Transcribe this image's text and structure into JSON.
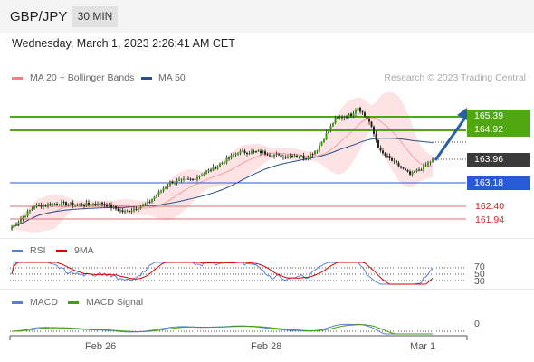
{
  "header": {
    "symbol": "GBP/JPY",
    "timeframe": "30 MIN"
  },
  "datetime": "Wednesday, March 1, 2023 2:26:41 AM CET",
  "legend": {
    "ma20": {
      "label": "MA 20 + Bollinger Bands",
      "color": "#f08080"
    },
    "ma50": {
      "label": "MA 50",
      "color": "#2a4f8f"
    }
  },
  "credit": "Research © 2023 Trading Central",
  "price_labels": {
    "r1": "165.39",
    "r2": "164.92",
    "last": "163.96",
    "s1": "163.18",
    "s2": "162.40",
    "s3": "161.94"
  },
  "rsi_panel": {
    "legend": {
      "rsi": "RSI",
      "ma": "9MA"
    },
    "levels": [
      "70",
      "50",
      "30"
    ],
    "colors": {
      "rsi": "#5b7fd6",
      "ma": "#e00000"
    }
  },
  "macd_panel": {
    "legend": {
      "macd": "MACD",
      "signal": "MACD Signal"
    },
    "zero_label": "0",
    "colors": {
      "macd": "#5b7fd6",
      "signal": "#3fa010"
    }
  },
  "x_axis": {
    "labels": [
      "Feb 26",
      "Feb 28",
      "Mar 1"
    ]
  },
  "colors": {
    "resistance": "#4fa80f",
    "support_pivot": "#2a5bd7",
    "support": "#d22020",
    "arrow": "#2a5fa8",
    "last_price_bg": "#3a3a3a"
  },
  "chart_data": {
    "type": "candlestick",
    "instrument": "GBP/JPY",
    "interval": "30 MIN",
    "x_ticks": [
      "Feb 26",
      "Feb 28",
      "Mar 1"
    ],
    "last_price": 163.96,
    "levels": {
      "resistance": [
        165.39,
        164.92
      ],
      "pivot": 163.18,
      "support": [
        162.4,
        161.94
      ]
    },
    "close_path": [
      {
        "i": 0,
        "close": 161.7
      },
      {
        "i": 10,
        "close": 162.4
      },
      {
        "i": 20,
        "close": 162.5
      },
      {
        "i": 30,
        "close": 162.45
      },
      {
        "i": 40,
        "close": 162.5
      },
      {
        "i": 50,
        "close": 162.2
      },
      {
        "i": 60,
        "close": 162.5
      },
      {
        "i": 70,
        "close": 163.2
      },
      {
        "i": 80,
        "close": 163.3
      },
      {
        "i": 90,
        "close": 163.7
      },
      {
        "i": 100,
        "close": 164.2
      },
      {
        "i": 110,
        "close": 164.2
      },
      {
        "i": 120,
        "close": 164.05
      },
      {
        "i": 125,
        "close": 164.1
      },
      {
        "i": 130,
        "close": 164.0
      },
      {
        "i": 135,
        "close": 164.3
      },
      {
        "i": 143,
        "close": 165.3
      },
      {
        "i": 150,
        "close": 165.45
      },
      {
        "i": 153,
        "close": 165.7
      },
      {
        "i": 158,
        "close": 165.2
      },
      {
        "i": 163,
        "close": 164.2
      },
      {
        "i": 170,
        "close": 163.8
      },
      {
        "i": 176,
        "close": 163.45
      },
      {
        "i": 182,
        "close": 163.7
      },
      {
        "i": 186,
        "close": 163.96
      }
    ]
  }
}
